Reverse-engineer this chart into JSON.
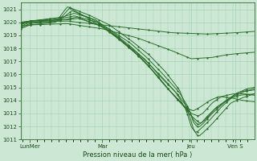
{
  "xlabel": "Pression niveau de la mer( hPa )",
  "bg_color": "#cce8d4",
  "grid_color": "#9ecfb0",
  "line_color": "#2d6e2d",
  "ylim": [
    1011,
    1021.5
  ],
  "xlim": [
    0,
    1
  ],
  "xtick_labels": [
    "LunMer",
    "Mar",
    "Jeu",
    "Ven S"
  ],
  "xtick_pos": [
    0.04,
    0.35,
    0.73,
    0.92
  ],
  "ytick_vals": [
    1011,
    1012,
    1013,
    1014,
    1015,
    1016,
    1017,
    1018,
    1019,
    1020,
    1021
  ],
  "series": [
    {
      "pts": [
        [
          0.0,
          1019.5
        ],
        [
          0.04,
          1019.8
        ],
        [
          0.15,
          1020.0
        ],
        [
          0.2,
          1021.2
        ],
        [
          0.3,
          1020.5
        ],
        [
          0.38,
          1019.8
        ],
        [
          0.48,
          1018.5
        ],
        [
          0.55,
          1017.5
        ],
        [
          0.62,
          1016.2
        ],
        [
          0.68,
          1014.8
        ],
        [
          0.72,
          1013.0
        ],
        [
          0.74,
          1011.8
        ],
        [
          0.76,
          1011.2
        ],
        [
          0.78,
          1011.5
        ],
        [
          0.82,
          1012.2
        ],
        [
          0.86,
          1013.0
        ],
        [
          0.9,
          1013.8
        ],
        [
          0.95,
          1014.2
        ],
        [
          1.0,
          1014.5
        ]
      ]
    },
    {
      "pts": [
        [
          0.0,
          1019.6
        ],
        [
          0.04,
          1019.9
        ],
        [
          0.16,
          1020.1
        ],
        [
          0.21,
          1021.1
        ],
        [
          0.28,
          1020.4
        ],
        [
          0.36,
          1019.5
        ],
        [
          0.46,
          1018.2
        ],
        [
          0.53,
          1017.2
        ],
        [
          0.6,
          1015.8
        ],
        [
          0.67,
          1014.5
        ],
        [
          0.71,
          1013.2
        ],
        [
          0.73,
          1012.0
        ],
        [
          0.75,
          1011.5
        ],
        [
          0.77,
          1011.8
        ],
        [
          0.81,
          1012.5
        ],
        [
          0.86,
          1013.5
        ],
        [
          0.91,
          1014.3
        ],
        [
          0.96,
          1014.7
        ],
        [
          1.0,
          1014.8
        ]
      ]
    },
    {
      "pts": [
        [
          0.0,
          1019.7
        ],
        [
          0.04,
          1020.0
        ],
        [
          0.17,
          1020.2
        ],
        [
          0.22,
          1020.9
        ],
        [
          0.3,
          1020.3
        ],
        [
          0.37,
          1019.6
        ],
        [
          0.47,
          1018.4
        ],
        [
          0.54,
          1017.3
        ],
        [
          0.61,
          1016.0
        ],
        [
          0.68,
          1014.6
        ],
        [
          0.72,
          1013.4
        ],
        [
          0.74,
          1012.3
        ],
        [
          0.76,
          1011.9
        ],
        [
          0.78,
          1012.2
        ],
        [
          0.82,
          1013.0
        ],
        [
          0.87,
          1013.8
        ],
        [
          0.92,
          1014.5
        ],
        [
          0.97,
          1014.9
        ],
        [
          1.0,
          1015.0
        ]
      ]
    },
    {
      "pts": [
        [
          0.0,
          1019.8
        ],
        [
          0.04,
          1020.1
        ],
        [
          0.18,
          1020.4
        ],
        [
          0.23,
          1020.7
        ],
        [
          0.32,
          1020.2
        ],
        [
          0.39,
          1019.3
        ],
        [
          0.48,
          1018.0
        ],
        [
          0.55,
          1016.8
        ],
        [
          0.62,
          1015.5
        ],
        [
          0.68,
          1014.3
        ],
        [
          0.72,
          1013.3
        ],
        [
          0.74,
          1012.5
        ],
        [
          0.76,
          1012.1
        ],
        [
          0.79,
          1012.5
        ],
        [
          0.83,
          1013.3
        ],
        [
          0.88,
          1014.0
        ],
        [
          0.93,
          1014.6
        ],
        [
          0.98,
          1014.8
        ],
        [
          1.0,
          1014.9
        ]
      ]
    },
    {
      "pts": [
        [
          0.0,
          1019.9
        ],
        [
          0.04,
          1020.1
        ],
        [
          0.18,
          1020.3
        ],
        [
          0.23,
          1020.5
        ],
        [
          0.33,
          1020.0
        ],
        [
          0.4,
          1019.0
        ],
        [
          0.5,
          1017.5
        ],
        [
          0.57,
          1016.2
        ],
        [
          0.63,
          1014.9
        ],
        [
          0.69,
          1013.8
        ],
        [
          0.72,
          1013.0
        ],
        [
          0.75,
          1012.5
        ],
        [
          0.77,
          1012.2
        ],
        [
          0.8,
          1012.8
        ],
        [
          0.84,
          1013.5
        ],
        [
          0.89,
          1014.1
        ],
        [
          0.94,
          1014.4
        ],
        [
          1.0,
          1014.5
        ]
      ]
    },
    {
      "pts": [
        [
          0.0,
          1020.0
        ],
        [
          0.04,
          1020.1
        ],
        [
          0.19,
          1020.2
        ],
        [
          0.24,
          1020.4
        ],
        [
          0.35,
          1019.7
        ],
        [
          0.42,
          1018.8
        ],
        [
          0.52,
          1017.2
        ],
        [
          0.59,
          1015.8
        ],
        [
          0.65,
          1014.5
        ],
        [
          0.7,
          1013.5
        ],
        [
          0.73,
          1013.0
        ],
        [
          0.76,
          1012.8
        ],
        [
          0.78,
          1013.0
        ],
        [
          0.82,
          1013.8
        ],
        [
          0.86,
          1014.3
        ],
        [
          0.91,
          1014.5
        ],
        [
          0.96,
          1014.5
        ],
        [
          1.0,
          1014.4
        ]
      ]
    },
    {
      "pts": [
        [
          0.0,
          1020.0
        ],
        [
          0.05,
          1020.1
        ],
        [
          0.2,
          1020.2
        ],
        [
          0.25,
          1020.3
        ],
        [
          0.36,
          1019.6
        ],
        [
          0.44,
          1018.5
        ],
        [
          0.54,
          1016.8
        ],
        [
          0.61,
          1015.3
        ],
        [
          0.67,
          1014.1
        ],
        [
          0.71,
          1013.4
        ],
        [
          0.74,
          1013.2
        ],
        [
          0.77,
          1013.5
        ],
        [
          0.81,
          1014.0
        ],
        [
          0.85,
          1014.3
        ],
        [
          0.9,
          1014.2
        ],
        [
          0.95,
          1014.0
        ],
        [
          1.0,
          1013.9
        ]
      ]
    },
    {
      "pts": [
        [
          0.0,
          1019.9
        ],
        [
          0.04,
          1020.0
        ],
        [
          0.2,
          1020.1
        ],
        [
          0.35,
          1019.8
        ],
        [
          0.5,
          1019.5
        ],
        [
          0.65,
          1019.2
        ],
        [
          0.8,
          1019.1
        ],
        [
          0.92,
          1019.2
        ],
        [
          1.0,
          1019.3
        ]
      ]
    },
    {
      "pts": [
        [
          0.0,
          1019.7
        ],
        [
          0.04,
          1019.8
        ],
        [
          0.2,
          1019.9
        ],
        [
          0.35,
          1019.5
        ],
        [
          0.5,
          1018.8
        ],
        [
          0.65,
          1017.8
        ],
        [
          0.73,
          1017.2
        ],
        [
          0.82,
          1017.3
        ],
        [
          0.88,
          1017.5
        ],
        [
          0.93,
          1017.6
        ],
        [
          1.0,
          1017.7
        ]
      ]
    }
  ]
}
